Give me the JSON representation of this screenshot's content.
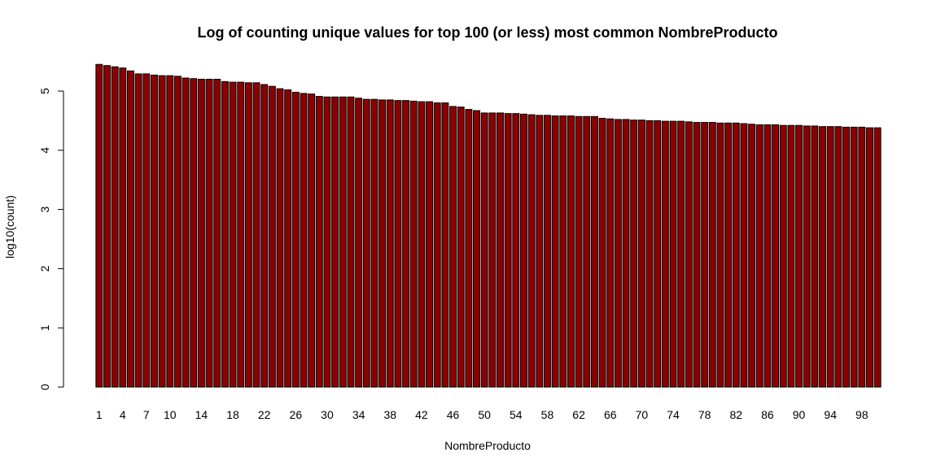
{
  "chart_data": {
    "type": "bar",
    "title": "Log of counting unique values for top 100 (or less) most common NombreProducto",
    "xlabel": "NombreProducto",
    "ylabel": "log10(count)",
    "ylim": [
      0,
      5.5
    ],
    "yticks": [
      0,
      1,
      2,
      3,
      4,
      5
    ],
    "bar_color": "#8B0000",
    "x_tick_labels": [
      "1",
      "4",
      "7",
      "10",
      "14",
      "18",
      "22",
      "26",
      "30",
      "34",
      "38",
      "42",
      "46",
      "50",
      "54",
      "58",
      "62",
      "66",
      "70",
      "74",
      "78",
      "82",
      "86",
      "90",
      "94",
      "98"
    ],
    "x_tick_categories": [
      1,
      4,
      7,
      10,
      14,
      18,
      22,
      26,
      30,
      34,
      38,
      42,
      46,
      50,
      54,
      58,
      62,
      66,
      70,
      74,
      78,
      82,
      86,
      90,
      94,
      98
    ],
    "categories": [
      1,
      2,
      3,
      4,
      5,
      6,
      7,
      8,
      9,
      10,
      11,
      12,
      13,
      14,
      15,
      16,
      17,
      18,
      19,
      20,
      21,
      22,
      23,
      24,
      25,
      26,
      27,
      28,
      29,
      30,
      31,
      32,
      33,
      34,
      35,
      36,
      37,
      38,
      39,
      40,
      41,
      42,
      43,
      44,
      45,
      46,
      47,
      48,
      49,
      50,
      51,
      52,
      53,
      54,
      55,
      56,
      57,
      58,
      59,
      60,
      61,
      62,
      63,
      64,
      65,
      66,
      67,
      68,
      69,
      70,
      71,
      72,
      73,
      74,
      75,
      76,
      77,
      78,
      79,
      80,
      81,
      82,
      83,
      84,
      85,
      86,
      87,
      88,
      89,
      90,
      91,
      92,
      93,
      94,
      95,
      96,
      97,
      98,
      99,
      100
    ],
    "values": [
      5.45,
      5.43,
      5.41,
      5.39,
      5.34,
      5.29,
      5.29,
      5.27,
      5.26,
      5.26,
      5.25,
      5.22,
      5.21,
      5.2,
      5.2,
      5.2,
      5.16,
      5.15,
      5.15,
      5.14,
      5.14,
      5.11,
      5.08,
      5.04,
      5.02,
      4.98,
      4.96,
      4.95,
      4.91,
      4.9,
      4.9,
      4.9,
      4.9,
      4.88,
      4.86,
      4.86,
      4.85,
      4.85,
      4.84,
      4.84,
      4.83,
      4.82,
      4.82,
      4.8,
      4.8,
      4.74,
      4.73,
      4.69,
      4.67,
      4.63,
      4.63,
      4.63,
      4.62,
      4.62,
      4.61,
      4.6,
      4.59,
      4.59,
      4.58,
      4.58,
      4.58,
      4.57,
      4.57,
      4.57,
      4.54,
      4.53,
      4.52,
      4.52,
      4.51,
      4.51,
      4.5,
      4.5,
      4.49,
      4.49,
      4.49,
      4.48,
      4.47,
      4.47,
      4.47,
      4.46,
      4.46,
      4.46,
      4.45,
      4.44,
      4.43,
      4.43,
      4.43,
      4.42,
      4.42,
      4.42,
      4.41,
      4.41,
      4.4,
      4.4,
      4.4,
      4.39,
      4.39,
      4.39,
      4.38,
      4.38
    ]
  }
}
